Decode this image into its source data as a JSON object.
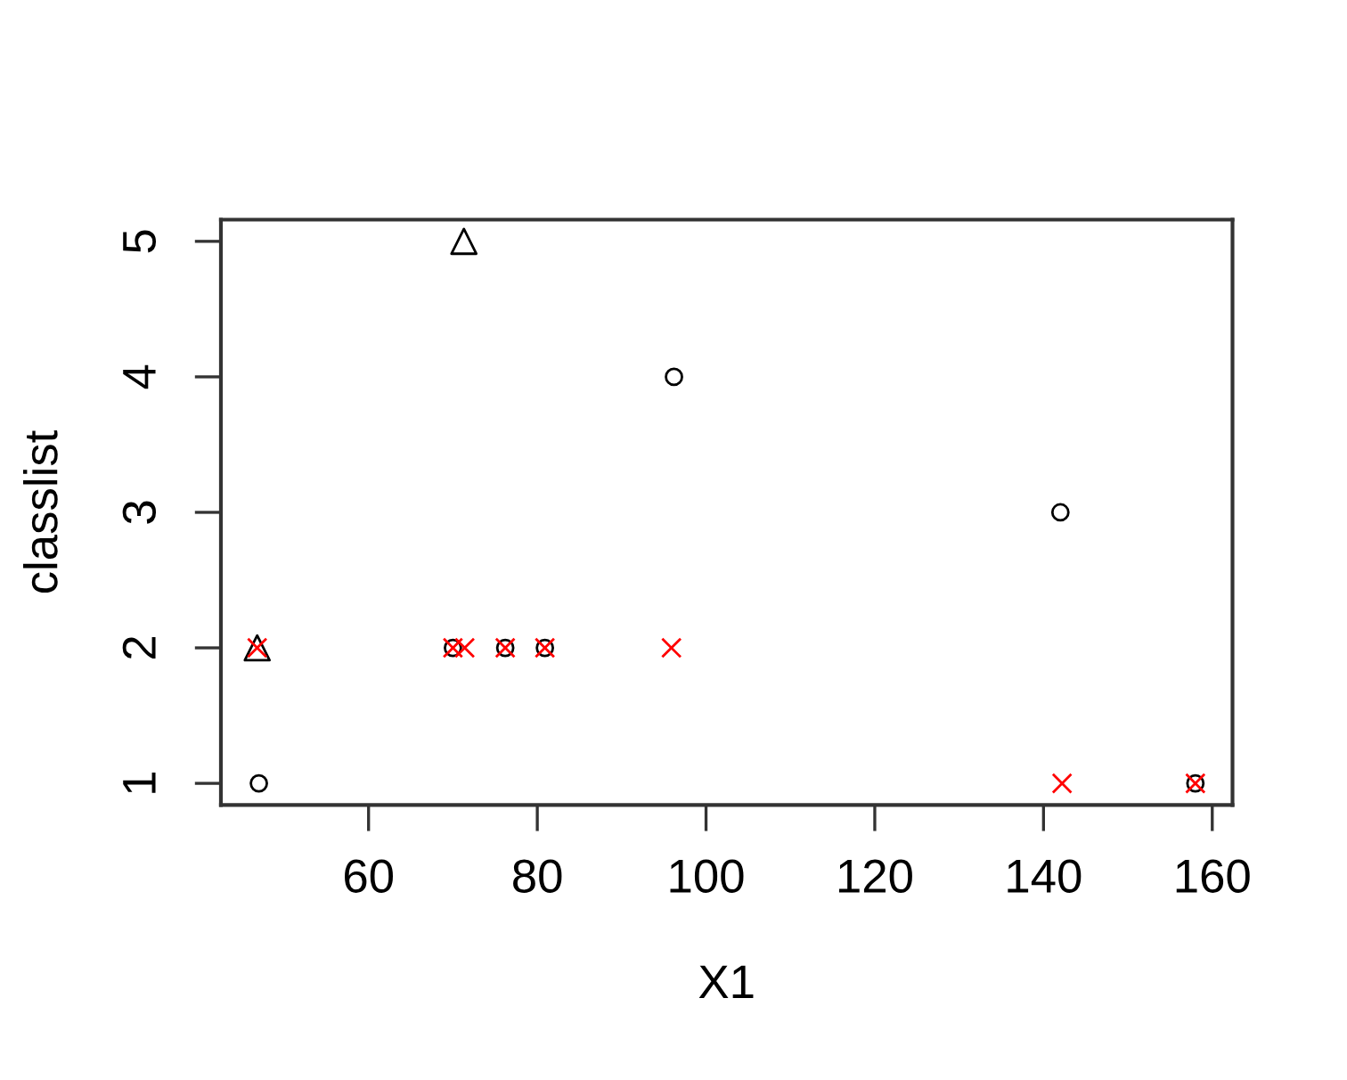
{
  "chart_data": {
    "type": "scatter",
    "xlabel": "X1",
    "ylabel": "classlist",
    "xlim": [
      42.5,
      162.4
    ],
    "ylim": [
      0.84,
      5.16
    ],
    "xticks": [
      60,
      80,
      100,
      120,
      140,
      160
    ],
    "yticks": [
      1,
      2,
      3,
      4,
      5
    ],
    "grid": false,
    "series": [
      {
        "color": "#000000",
        "marker": "circle",
        "x": [
          47.0,
          70.0,
          76.2,
          80.9,
          96.2,
          142.0,
          158.0
        ],
        "values": [
          1,
          2,
          2,
          2,
          4,
          3,
          1
        ]
      },
      {
        "color": "#000000",
        "marker": "triangle",
        "x": [
          46.8,
          71.3
        ],
        "values": [
          2,
          5
        ]
      },
      {
        "color": "#ff0000",
        "marker": "cross",
        "x": [
          46.8,
          70.0,
          71.4,
          76.2,
          80.9,
          95.9,
          142.2,
          158.0
        ],
        "values": [
          2,
          2,
          2,
          2,
          2,
          2,
          1,
          1
        ]
      }
    ]
  }
}
